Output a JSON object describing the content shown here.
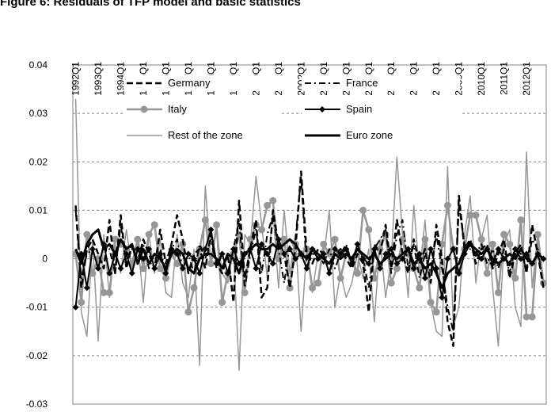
{
  "chart_data": {
    "type": "line",
    "title": "Figure 6: Residuals of TFP model and basic statistics",
    "categories": [
      "1992Q1",
      null,
      null,
      null,
      "1993Q1",
      null,
      null,
      null,
      "1994Q1",
      null,
      null,
      null,
      "1995Q1",
      null,
      null,
      null,
      "1996Q1",
      null,
      null,
      null,
      "1997Q1",
      null,
      null,
      null,
      "1998Q1",
      null,
      null,
      null,
      "1999Q1",
      null,
      null,
      null,
      "2000Q1",
      null,
      null,
      null,
      "2001Q1",
      null,
      null,
      null,
      "2002Q1",
      null,
      null,
      null,
      "2003Q1",
      null,
      null,
      null,
      "2004Q1",
      null,
      null,
      null,
      "2005Q1",
      null,
      null,
      null,
      "2006Q1",
      null,
      null,
      null,
      "2007Q1",
      null,
      null,
      null,
      "2008Q1",
      null,
      null,
      null,
      "2009Q1",
      null,
      null,
      null,
      "2010Q1",
      null,
      null,
      null,
      "2011Q1",
      null,
      null,
      null,
      "2012Q1",
      null,
      null,
      null
    ],
    "ylim": [
      -0.03,
      0.04
    ],
    "yticks": [
      -0.03,
      -0.02,
      -0.01,
      0,
      0.01,
      0.02,
      0.03,
      0.04
    ],
    "grid": true,
    "legend": "top",
    "series": [
      {
        "name": "Germany",
        "color": "#000000",
        "line_style": "dashed",
        "line_width": 2.5,
        "values": [
          0.011,
          -0.006,
          0.002,
          0.004,
          0.001,
          -0.002,
          0.008,
          -0.003,
          0.009,
          -0.002,
          0.003,
          -0.001,
          0.004,
          0.001,
          -0.002,
          0.006,
          -0.001,
          0.003,
          0.009,
          0.004,
          -0.003,
          0.001,
          0.002,
          -0.002,
          0.005,
          -0.001,
          -0.003,
          0.001,
          -0.009,
          0.012,
          -0.004,
          0.002,
          0.008,
          -0.008,
          -0.006,
          0.01,
          0.003,
          0.001,
          -0.006,
          0.002,
          0.018,
          0.001,
          -0.001,
          0.002,
          0.001,
          -0.003,
          0.001,
          0.002,
          0.0,
          -0.002,
          0.001,
          -0.001,
          -0.011,
          0.003,
          0.001,
          0.007,
          -0.002,
          0.008,
          0.001,
          -0.003,
          0.004,
          -0.001,
          0.002,
          -0.005,
          0.007,
          0.0,
          -0.013,
          -0.018,
          0.013,
          0.002,
          0.004,
          -0.001,
          0.002,
          0.003,
          -0.002,
          0.001,
          0.004,
          -0.004,
          0.001,
          0.003,
          -0.003,
          0.007,
          0.001,
          -0.006
        ]
      },
      {
        "name": "France",
        "color": "#000000",
        "line_style": "dash-dot",
        "line_width": 2,
        "values": [
          0.01,
          -0.004,
          0.001,
          0.002,
          -0.002,
          0.003,
          0.002,
          -0.003,
          0.007,
          -0.001,
          0.002,
          0.0,
          0.003,
          -0.002,
          0.001,
          0.002,
          -0.003,
          0.002,
          0.004,
          -0.002,
          0.001,
          -0.003,
          0.003,
          0.0,
          0.004,
          -0.002,
          0.001,
          -0.003,
          0.002,
          0.008,
          -0.006,
          0.001,
          0.006,
          -0.003,
          0.005,
          0.009,
          0.002,
          -0.005,
          0.003,
          0.004,
          0.017,
          -0.002,
          0.001,
          0.001,
          -0.001,
          0.002,
          -0.002,
          0.001,
          0.003,
          -0.001,
          0.002,
          0.0,
          -0.006,
          0.002,
          0.004,
          0.006,
          -0.003,
          0.005,
          0.008,
          -0.002,
          0.003,
          -0.004,
          0.001,
          -0.003,
          0.005,
          -0.002,
          -0.01,
          -0.015,
          0.011,
          0.003,
          0.002,
          0.001,
          0.003,
          -0.001,
          0.002,
          -0.002,
          0.002,
          -0.003,
          0.002,
          0.001,
          -0.002,
          0.004,
          0.002,
          -0.006
        ]
      },
      {
        "name": "Italy",
        "color": "#969696",
        "line_style": "solid",
        "line_width": 2.5,
        "marker": "circle",
        "values": [
          0.001,
          -0.009,
          0.005,
          -0.003,
          0.0,
          -0.007,
          -0.007,
          0.004,
          0.003,
          0.002,
          -0.001,
          0.004,
          -0.002,
          0.005,
          0.007,
          -0.002,
          -0.004,
          0.001,
          -0.001,
          0.003,
          -0.011,
          -0.006,
          0.002,
          0.008,
          -0.001,
          0.007,
          -0.009,
          -0.003,
          0.001,
          0.005,
          -0.007,
          0.004,
          0.007,
          0.006,
          0.011,
          0.012,
          0.0,
          0.004,
          -0.006,
          0.003,
          0.001,
          0.002,
          -0.006,
          -0.005,
          0.003,
          0.001,
          0.004,
          -0.004,
          0.001,
          0.0,
          -0.003,
          0.01,
          0.006,
          -0.004,
          0.002,
          0.005,
          -0.005,
          -0.002,
          0.004,
          0.001,
          -0.002,
          -0.006,
          0.004,
          -0.009,
          -0.011,
          0.003,
          0.011,
          0.002,
          -0.003,
          0.002,
          0.009,
          0.009,
          0.004,
          -0.003,
          0.003,
          -0.007,
          0.005,
          0.003,
          -0.004,
          0.008,
          -0.012,
          -0.012,
          0.005,
          -0.005
        ]
      },
      {
        "name": "Spain",
        "color": "#000000",
        "line_style": "solid",
        "line_width": 2,
        "marker": "diamond",
        "values": [
          -0.01,
          0.001,
          -0.006,
          0.002,
          -0.002,
          0.003,
          -0.003,
          0.001,
          -0.002,
          0.001,
          -0.003,
          0.002,
          0.0,
          0.002,
          -0.002,
          0.001,
          -0.003,
          0.002,
          0.001,
          -0.002,
          0.001,
          0.0,
          -0.003,
          0.002,
          0.006,
          -0.001,
          0.001,
          -0.003,
          0.002,
          -0.001,
          0.001,
          0.002,
          -0.002,
          0.003,
          0.001,
          -0.001,
          0.004,
          0.001,
          0.002,
          0.0,
          0.001,
          -0.002,
          0.002,
          0.0,
          0.001,
          -0.003,
          0.002,
          0.001,
          0.002,
          -0.001,
          0.003,
          0.0,
          -0.001,
          0.002,
          -0.002,
          0.001,
          0.002,
          -0.001,
          0.0,
          0.002,
          -0.002,
          0.001,
          -0.004,
          0.002,
          -0.002,
          -0.008,
          0.0,
          0.002,
          -0.003,
          0.001,
          0.003,
          0.001,
          0.0,
          0.002,
          -0.001,
          0.002,
          0.0,
          -0.001,
          0.002,
          0.0,
          0.001,
          -0.001,
          0.001,
          0.0
        ]
      },
      {
        "name": "Rest of the zone",
        "color": "#969696",
        "line_style": "solid",
        "line_width": 1.5,
        "values": [
          0.033,
          -0.011,
          -0.016,
          0.004,
          -0.017,
          0.005,
          -0.008,
          0.003,
          -0.003,
          0.006,
          -0.002,
          0.004,
          -0.009,
          0.005,
          -0.003,
          0.004,
          -0.007,
          -0.008,
          0.005,
          -0.005,
          -0.008,
          0.002,
          -0.022,
          0.015,
          -0.001,
          0.006,
          -0.003,
          -0.005,
          0.002,
          -0.023,
          0.005,
          0.003,
          0.017,
          0.007,
          -0.004,
          0.01,
          -0.006,
          0.01,
          -0.003,
          0.005,
          -0.015,
          0.002,
          -0.007,
          0.001,
          0.0,
          0.01,
          -0.01,
          -0.003,
          -0.008,
          -0.005,
          0.001,
          -0.004,
          0.002,
          -0.013,
          0.004,
          -0.008,
          0.0,
          0.021,
          0.005,
          -0.008,
          0.011,
          -0.003,
          0.008,
          -0.009,
          -0.015,
          -0.016,
          0.019,
          -0.014,
          -0.01,
          0.005,
          0.013,
          -0.005,
          0.004,
          0.009,
          -0.006,
          -0.018,
          0.003,
          0.006,
          -0.01,
          -0.014,
          0.022,
          -0.006,
          0.005,
          -0.005
        ]
      },
      {
        "name": "Euro zone",
        "color": "#000000",
        "line_style": "solid",
        "line_width": 3,
        "values": [
          0.002,
          -0.001,
          0.003,
          0.005,
          0.006,
          0.002,
          0.003,
          0.001,
          0.004,
          0.002,
          0.003,
          -0.001,
          0.002,
          -0.001,
          0.001,
          0.0,
          -0.002,
          0.001,
          0.002,
          0.001,
          -0.002,
          -0.003,
          0.0,
          0.001,
          0.001,
          0.0,
          -0.002,
          0.001,
          0.0,
          -0.003,
          0.001,
          0.002,
          0.003,
          0.002,
          0.002,
          0.003,
          0.002,
          0.003,
          0.004,
          0.003,
          0.001,
          0.0,
          0.002,
          0.001,
          0.0,
          -0.001,
          0.001,
          0.0,
          0.001,
          0.0,
          0.002,
          0.001,
          0.0,
          0.001,
          -0.001,
          0.0,
          0.001,
          0.0,
          0.001,
          0.002,
          -0.001,
          0.0,
          -0.002,
          -0.001,
          -0.003,
          -0.006,
          -0.003,
          -0.002,
          -0.001,
          0.002,
          0.003,
          0.002,
          0.001,
          0.002,
          0.0,
          -0.001,
          0.0,
          0.001,
          0.0,
          0.002,
          0.0,
          -0.001,
          0.001,
          0.0
        ]
      }
    ]
  }
}
